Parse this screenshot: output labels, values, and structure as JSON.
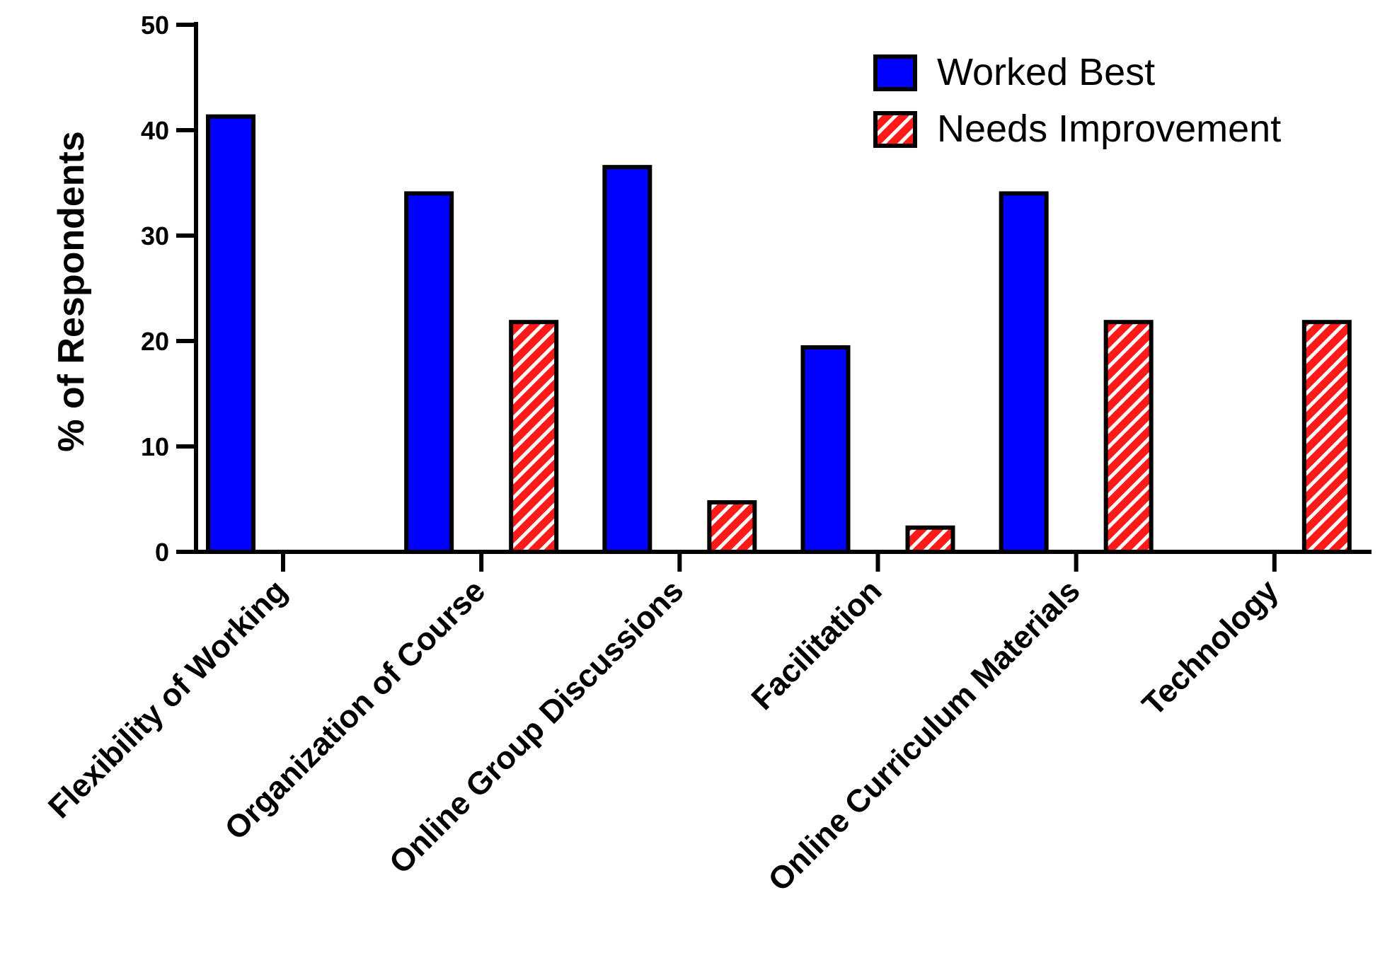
{
  "chart_data": {
    "type": "bar",
    "title": "",
    "xlabel": "",
    "ylabel": "% of Respondents",
    "ylim": [
      0,
      50
    ],
    "yticks": [
      0,
      10,
      20,
      30,
      40,
      50
    ],
    "categories": [
      "Flexibility of Working",
      "Organization of Course",
      "Online Group Discussions",
      "Facilitation",
      "Online Curriculum Materials",
      "Technology"
    ],
    "series": [
      {
        "name": "Worked Best",
        "values": [
          41.3,
          34.0,
          36.5,
          19.4,
          34.0,
          0
        ],
        "color": "#0000ff",
        "pattern": "solid"
      },
      {
        "name": "Needs Improvement",
        "values": [
          0,
          21.8,
          4.7,
          2.3,
          21.8,
          21.8
        ],
        "color": "#ff1a1a",
        "pattern": "diagonal-stripes"
      }
    ],
    "legend": "top-right",
    "grid": false
  }
}
